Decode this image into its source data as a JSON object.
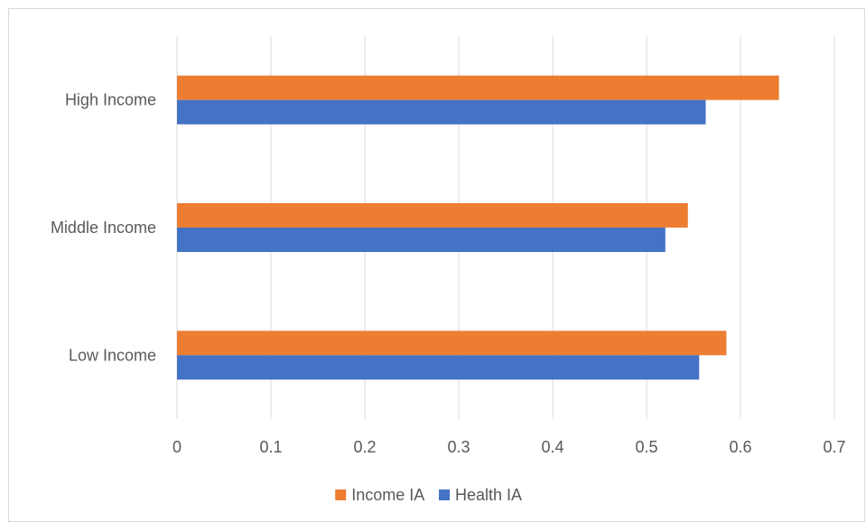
{
  "chart_data": {
    "type": "bar",
    "orientation": "horizontal",
    "title": "",
    "xlabel": "",
    "ylabel": "",
    "categories": [
      "Low Income",
      "Middle Income",
      "High Income"
    ],
    "series": [
      {
        "name": "Income IA",
        "values": [
          0.585,
          0.544,
          0.641
        ],
        "color": "#ED7D31"
      },
      {
        "name": "Health IA",
        "values": [
          0.556,
          0.52,
          0.563
        ],
        "color": "#4472C4"
      }
    ],
    "xlim": [
      0,
      0.7
    ],
    "xticks": [
      "0",
      "0.1",
      "0.2",
      "0.3",
      "0.4",
      "0.5",
      "0.6",
      "0.7"
    ],
    "grid": true,
    "legend_position": "bottom",
    "colors": {
      "gridline": "#d9d9d9",
      "text": "#595959"
    }
  }
}
